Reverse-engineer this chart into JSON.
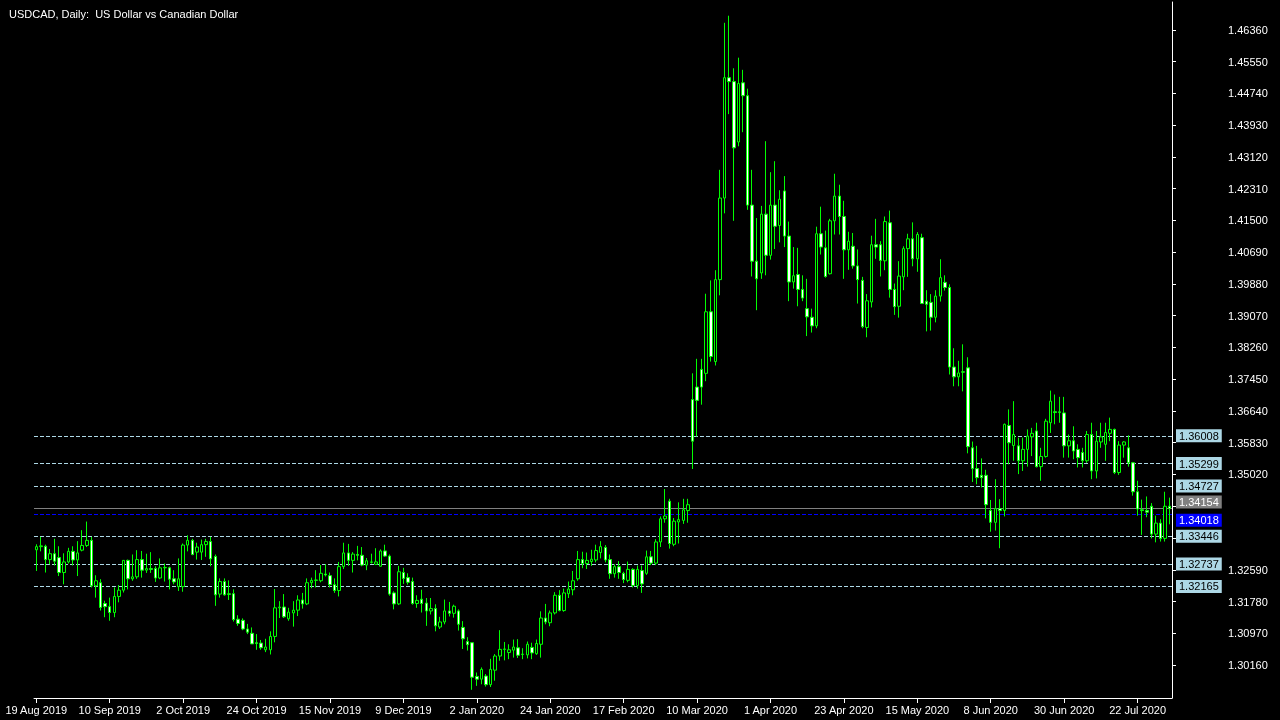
{
  "chart_data": {
    "type": "candlestick",
    "title": "USDCAD, Daily:  US Dollar vs Canadian Dollar",
    "color": "#00ff00",
    "categories": [
      "19 Aug 2019",
      null,
      null,
      null,
      null,
      null,
      null,
      null,
      null,
      null,
      null,
      null,
      null,
      null,
      null,
      null,
      "10 Sep 2019",
      null,
      null,
      null,
      null,
      null,
      null,
      null,
      null,
      null,
      null,
      null,
      null,
      null,
      null,
      null,
      "2 Oct 2019",
      null,
      null,
      null,
      null,
      null,
      null,
      null,
      null,
      null,
      null,
      null,
      null,
      null,
      null,
      null,
      "24 Oct 2019",
      null,
      null,
      null,
      null,
      null,
      null,
      null,
      null,
      null,
      null,
      null,
      null,
      null,
      null,
      null,
      "15 Nov 2019",
      null,
      null,
      null,
      null,
      null,
      null,
      null,
      null,
      null,
      null,
      null,
      null,
      null,
      null,
      null,
      "9 Dec 2019",
      null,
      null,
      null,
      null,
      null,
      null,
      null,
      null,
      null,
      null,
      null,
      null,
      null,
      null,
      null,
      "2 Jan 2020",
      null,
      null,
      null,
      null,
      null,
      null,
      null,
      null,
      null,
      null,
      null,
      null,
      null,
      null,
      null,
      "24 Jan 2020",
      null,
      null,
      null,
      null,
      null,
      null,
      null,
      null,
      null,
      null,
      null,
      null,
      null,
      null,
      null,
      "17 Feb 2020",
      null,
      null,
      null,
      null,
      null,
      null,
      null,
      null,
      null,
      null,
      null,
      null,
      null,
      null,
      null,
      "10 Mar 2020",
      null,
      null,
      null,
      null,
      null,
      null,
      null,
      null,
      null,
      null,
      null,
      null,
      null,
      null,
      null,
      "1 Apr 2020",
      null,
      null,
      null,
      null,
      null,
      null,
      null,
      null,
      null,
      null,
      null,
      null,
      null,
      null,
      null,
      "23 Apr 2020",
      null,
      null,
      null,
      null,
      null,
      null,
      null,
      null,
      null,
      null,
      null,
      null,
      null,
      null,
      null,
      "15 May 2020",
      null,
      null,
      null,
      null,
      null,
      null,
      null,
      null,
      null,
      null,
      null,
      null,
      null,
      null,
      null,
      "8 Jun 2020",
      null,
      null,
      null,
      null,
      null,
      null,
      null,
      null,
      null,
      null,
      null,
      null,
      null,
      null,
      null,
      "30 Jun 2020",
      null,
      null,
      null,
      null,
      null,
      null,
      null,
      null,
      null,
      null,
      null,
      null,
      null,
      null,
      null,
      "22 Jul 2020",
      null,
      null,
      null,
      null,
      null,
      null,
      null
    ],
    "ohlc": [
      [
        1.331,
        1.3324,
        1.3256,
        1.3318
      ],
      [
        1.3318,
        1.3343,
        1.3306,
        1.332
      ],
      [
        1.3319,
        1.3323,
        1.3252,
        1.3285
      ],
      [
        1.3285,
        1.3312,
        1.3273,
        1.33
      ],
      [
        1.33,
        1.3338,
        1.327,
        1.3281
      ],
      [
        1.329,
        1.3319,
        1.3243,
        1.3252
      ],
      [
        1.3252,
        1.3301,
        1.3222,
        1.3279
      ],
      [
        1.3279,
        1.3315,
        1.3275,
        1.3306
      ],
      [
        1.3306,
        1.3319,
        1.327,
        1.3284
      ],
      [
        1.3284,
        1.3332,
        1.3243,
        1.3302
      ],
      [
        1.3309,
        1.336,
        1.3306,
        1.3321
      ],
      [
        1.3321,
        1.3382,
        1.3317,
        1.3334
      ],
      [
        1.3334,
        1.3343,
        1.3214,
        1.3218
      ],
      [
        1.3218,
        1.3245,
        1.3188,
        1.3231
      ],
      [
        1.3226,
        1.3235,
        1.3155,
        1.3163
      ],
      [
        1.3173,
        1.318,
        1.3138,
        1.3165
      ],
      [
        1.3165,
        1.3188,
        1.3129,
        1.315
      ],
      [
        1.315,
        1.3214,
        1.3138,
        1.3191
      ],
      [
        1.3191,
        1.322,
        1.3176,
        1.3207
      ],
      [
        1.3207,
        1.3283,
        1.3201,
        1.3283
      ],
      [
        1.3283,
        1.3285,
        1.3209,
        1.3236
      ],
      [
        1.3236,
        1.3298,
        1.3231,
        1.3241
      ],
      [
        1.3241,
        1.3309,
        1.3236,
        1.3285
      ],
      [
        1.3285,
        1.3307,
        1.3239,
        1.3258
      ],
      [
        1.3258,
        1.33,
        1.3251,
        1.3262
      ],
      [
        1.3262,
        1.3304,
        1.3251,
        1.326
      ],
      [
        1.3262,
        1.3268,
        1.3228,
        1.3238
      ],
      [
        1.3238,
        1.3288,
        1.3235,
        1.3264
      ],
      [
        1.3264,
        1.3275,
        1.3229,
        1.3265
      ],
      [
        1.3264,
        1.3267,
        1.3209,
        1.3235
      ],
      [
        1.3236,
        1.3258,
        1.3222,
        1.3228
      ],
      [
        1.3216,
        1.3288,
        1.3205,
        1.3236
      ],
      [
        1.3216,
        1.3326,
        1.3203,
        1.3322
      ],
      [
        1.3322,
        1.3347,
        1.3306,
        1.3334
      ],
      [
        1.3334,
        1.3338,
        1.3296,
        1.3298
      ],
      [
        1.3304,
        1.3328,
        1.3285,
        1.3317
      ],
      [
        1.3304,
        1.3336,
        1.3284,
        1.3323
      ],
      [
        1.3323,
        1.3338,
        1.3292,
        1.3331
      ],
      [
        1.3331,
        1.3343,
        1.3268,
        1.3287
      ],
      [
        1.3293,
        1.3298,
        1.3167,
        1.3195
      ],
      [
        1.3197,
        1.3237,
        1.3188,
        1.3229
      ],
      [
        1.3229,
        1.3237,
        1.3193,
        1.3195
      ],
      [
        1.3196,
        1.3232,
        1.3182,
        1.3198
      ],
      [
        1.3198,
        1.3209,
        1.3127,
        1.3132
      ],
      [
        1.3133,
        1.3143,
        1.3116,
        1.3122
      ],
      [
        1.313,
        1.3135,
        1.3105,
        1.3108
      ],
      [
        1.3108,
        1.3121,
        1.3095,
        1.31
      ],
      [
        1.3097,
        1.3112,
        1.307,
        1.307
      ],
      [
        1.3073,
        1.3095,
        1.3055,
        1.3071
      ],
      [
        1.3072,
        1.308,
        1.3055,
        1.306
      ],
      [
        1.3055,
        1.3083,
        1.3049,
        1.3062
      ],
      [
        1.3055,
        1.3102,
        1.3043,
        1.3089
      ],
      [
        1.3089,
        1.321,
        1.3074,
        1.3162
      ],
      [
        1.3162,
        1.3179,
        1.3136,
        1.3164
      ],
      [
        1.3164,
        1.3197,
        1.3136,
        1.3139
      ],
      [
        1.3134,
        1.3162,
        1.3129,
        1.3151
      ],
      [
        1.3149,
        1.3179,
        1.3114,
        1.3156
      ],
      [
        1.3156,
        1.3194,
        1.3141,
        1.3182
      ],
      [
        1.3182,
        1.32,
        1.316,
        1.3172
      ],
      [
        1.3172,
        1.3237,
        1.3169,
        1.3226
      ],
      [
        1.3226,
        1.3239,
        1.3212,
        1.3232
      ],
      [
        1.3232,
        1.3258,
        1.3214,
        1.3233
      ],
      [
        1.3231,
        1.3271,
        1.3227,
        1.325
      ],
      [
        1.3248,
        1.3273,
        1.3242,
        1.3246
      ],
      [
        1.3244,
        1.3252,
        1.3214,
        1.3221
      ],
      [
        1.3221,
        1.3237,
        1.32,
        1.3206
      ],
      [
        1.3206,
        1.3279,
        1.3191,
        1.3267
      ],
      [
        1.3267,
        1.3328,
        1.3261,
        1.3302
      ],
      [
        1.3302,
        1.3325,
        1.3269,
        1.3283
      ],
      [
        1.3283,
        1.3304,
        1.3252,
        1.3299
      ],
      [
        1.3298,
        1.332,
        1.3283,
        1.3296
      ],
      [
        1.3296,
        1.3317,
        1.3268,
        1.3271
      ],
      [
        1.3271,
        1.3289,
        1.3258,
        1.3282
      ],
      [
        1.3278,
        1.33,
        1.3275,
        1.3279
      ],
      [
        1.3273,
        1.3314,
        1.3271,
        1.3279
      ],
      [
        1.3268,
        1.3311,
        1.3267,
        1.3307
      ],
      [
        1.3307,
        1.3323,
        1.3292,
        1.3294
      ],
      [
        1.3294,
        1.3298,
        1.3193,
        1.3197
      ],
      [
        1.32,
        1.3204,
        1.3158,
        1.3172
      ],
      [
        1.3172,
        1.3269,
        1.3169,
        1.3254
      ],
      [
        1.3252,
        1.3264,
        1.3223,
        1.3237
      ],
      [
        1.3239,
        1.325,
        1.3221,
        1.3227
      ],
      [
        1.3229,
        1.3239,
        1.317,
        1.3173
      ],
      [
        1.3173,
        1.3194,
        1.3162,
        1.3181
      ],
      [
        1.3184,
        1.3208,
        1.315,
        1.3173
      ],
      [
        1.3174,
        1.3187,
        1.3116,
        1.3154
      ],
      [
        1.3154,
        1.3187,
        1.3145,
        1.316
      ],
      [
        1.316,
        1.3171,
        1.3102,
        1.3116
      ],
      [
        1.3113,
        1.3139,
        1.3108,
        1.3126
      ],
      [
        1.3126,
        1.3183,
        1.312,
        1.3154
      ],
      [
        1.3154,
        1.3177,
        1.314,
        1.3148
      ],
      [
        1.3148,
        1.317,
        1.3137,
        1.3166
      ],
      [
        1.3154,
        1.3158,
        1.3104,
        1.312
      ],
      [
        1.3112,
        1.3128,
        1.3057,
        1.3083
      ],
      [
        1.3076,
        1.3087,
        1.3053,
        1.3068
      ],
      [
        1.3073,
        1.3073,
        1.2953,
        1.2985
      ],
      [
        1.2987,
        1.2997,
        1.2963,
        1.298
      ],
      [
        1.298,
        1.301,
        1.2967,
        1.3005
      ],
      [
        1.2988,
        1.2993,
        1.2961,
        1.2966
      ],
      [
        1.2966,
        1.3032,
        1.296,
        1.3005
      ],
      [
        1.3003,
        1.3044,
        1.2976,
        1.3039
      ],
      [
        1.3039,
        1.3105,
        1.3027,
        1.3056
      ],
      [
        1.3056,
        1.3075,
        1.3028,
        1.3057
      ],
      [
        1.3048,
        1.3069,
        1.3031,
        1.3055
      ],
      [
        1.3054,
        1.3081,
        1.3035,
        1.3062
      ],
      [
        1.306,
        1.3082,
        1.3034,
        1.3041
      ],
      [
        1.3043,
        1.3059,
        1.3031,
        1.3044
      ],
      [
        1.3042,
        1.3076,
        1.3033,
        1.3069
      ],
      [
        1.3061,
        1.3073,
        1.3031,
        1.3047
      ],
      [
        1.3045,
        1.3081,
        1.3042,
        1.3071
      ],
      [
        1.3069,
        1.3153,
        1.3035,
        1.3136
      ],
      [
        1.3136,
        1.3172,
        1.312,
        1.3126
      ],
      [
        1.3124,
        1.3155,
        1.3115,
        1.3149
      ],
      [
        1.3149,
        1.3202,
        1.3145,
        1.3194
      ],
      [
        1.3194,
        1.3207,
        1.3153,
        1.3155
      ],
      [
        1.3155,
        1.3211,
        1.3152,
        1.32
      ],
      [
        1.3198,
        1.3229,
        1.3187,
        1.321
      ],
      [
        1.3208,
        1.3256,
        1.3194,
        1.3231
      ],
      [
        1.3236,
        1.3307,
        1.3231,
        1.3285
      ],
      [
        1.3285,
        1.3305,
        1.3263,
        1.3275
      ],
      [
        1.3275,
        1.3303,
        1.3261,
        1.3283
      ],
      [
        1.328,
        1.331,
        1.3269,
        1.3286
      ],
      [
        1.3284,
        1.3323,
        1.3278,
        1.3308
      ],
      [
        1.3303,
        1.3332,
        1.3288,
        1.3318
      ],
      [
        1.3316,
        1.3322,
        1.3278,
        1.3284
      ],
      [
        1.3285,
        1.3298,
        1.3236,
        1.3249
      ],
      [
        1.3249,
        1.3273,
        1.3239,
        1.3267
      ],
      [
        1.3267,
        1.3281,
        1.3236,
        1.3252
      ],
      [
        1.325,
        1.3254,
        1.3225,
        1.3234
      ],
      [
        1.3232,
        1.328,
        1.3227,
        1.326
      ],
      [
        1.326,
        1.3263,
        1.3214,
        1.3219
      ],
      [
        1.3219,
        1.327,
        1.3211,
        1.326
      ],
      [
        1.3257,
        1.327,
        1.32,
        1.3223
      ],
      [
        1.325,
        1.3308,
        1.3246,
        1.3292
      ],
      [
        1.3292,
        1.3307,
        1.3271,
        1.3276
      ],
      [
        1.3276,
        1.3337,
        1.3271,
        1.333
      ],
      [
        1.333,
        1.3395,
        1.3317,
        1.3389
      ],
      [
        1.3389,
        1.3465,
        1.3379,
        1.3396
      ],
      [
        1.3434,
        1.344,
        1.3313,
        1.3326
      ],
      [
        1.3324,
        1.3391,
        1.3319,
        1.3383
      ],
      [
        1.3381,
        1.3431,
        1.3326,
        1.3387
      ],
      [
        1.3385,
        1.344,
        1.3376,
        1.3412
      ],
      [
        1.341,
        1.344,
        1.3379,
        1.3425
      ],
      [
        1.3693,
        1.376,
        1.3516,
        1.3587
      ],
      [
        1.3725,
        1.3797,
        1.3599,
        1.3691
      ],
      [
        1.377,
        1.3797,
        1.368,
        1.3725
      ],
      [
        1.376,
        1.3963,
        1.374,
        1.3917
      ],
      [
        1.3917,
        1.3997,
        1.379,
        1.3803
      ],
      [
        1.379,
        1.4023,
        1.378,
        1.3999
      ],
      [
        1.3999,
        1.4279,
        1.3959,
        1.4207
      ],
      [
        1.4207,
        1.4654,
        1.4168,
        1.4514
      ],
      [
        1.4514,
        1.4672,
        1.4421,
        1.4504
      ],
      [
        1.4504,
        1.4538,
        1.4149,
        1.4335
      ],
      [
        1.435,
        1.4565,
        1.4339,
        1.4499
      ],
      [
        1.4501,
        1.4534,
        1.4375,
        1.4468
      ],
      [
        1.4468,
        1.4486,
        1.4177,
        1.4189
      ],
      [
        1.4189,
        1.4279,
        1.4007,
        1.4046
      ],
      [
        1.4046,
        1.4156,
        1.3921,
        1.4001
      ],
      [
        1.4016,
        1.4187,
        1.4001,
        1.4166
      ],
      [
        1.4166,
        1.4352,
        1.401,
        1.4061
      ],
      [
        1.4061,
        1.4273,
        1.405,
        1.4189
      ],
      [
        1.4189,
        1.4301,
        1.4077,
        1.4135
      ],
      [
        1.4137,
        1.4227,
        1.4094,
        1.4204
      ],
      [
        1.4225,
        1.4263,
        1.4082,
        1.411
      ],
      [
        1.411,
        1.4147,
        1.3944,
        1.3993
      ],
      [
        1.3993,
        1.4082,
        1.3976,
        1.4009
      ],
      [
        1.4012,
        1.408,
        1.3931,
        1.3974
      ],
      [
        1.3974,
        1.401,
        1.3944,
        1.3952
      ],
      [
        1.3925,
        1.4001,
        1.3855,
        1.3904
      ],
      [
        1.3903,
        1.3925,
        1.3864,
        1.3881
      ],
      [
        1.3881,
        1.4134,
        1.3875,
        1.4116
      ],
      [
        1.4116,
        1.4185,
        1.4063,
        1.4082
      ],
      [
        1.408,
        1.4124,
        1.4004,
        1.4007
      ],
      [
        1.4014,
        1.4154,
        1.4012,
        1.4149
      ],
      [
        1.4149,
        1.4269,
        1.4114,
        1.4212
      ],
      [
        1.4212,
        1.4241,
        1.4114,
        1.416
      ],
      [
        1.416,
        1.42,
        1.4001,
        1.4075
      ],
      [
        1.4075,
        1.4121,
        1.4024,
        1.4097
      ],
      [
        1.4084,
        1.4118,
        1.4027,
        1.4034
      ],
      [
        1.4034,
        1.4076,
        1.3938,
        1.3999
      ],
      [
        1.3997,
        1.4006,
        1.3875,
        1.3879
      ],
      [
        1.3877,
        1.3962,
        1.3852,
        1.3945
      ],
      [
        1.3942,
        1.4111,
        1.3928,
        1.4088
      ],
      [
        1.4088,
        1.4154,
        1.4052,
        1.4082
      ],
      [
        1.4088,
        1.4097,
        1.4007,
        1.4048
      ],
      [
        1.4047,
        1.416,
        1.4023,
        1.4147
      ],
      [
        1.4144,
        1.4175,
        1.3953,
        1.3974
      ],
      [
        1.3974,
        1.3989,
        1.3909,
        1.393
      ],
      [
        1.3931,
        1.4046,
        1.3902,
        1.4008
      ],
      [
        1.4006,
        1.4084,
        1.3972,
        1.4078
      ],
      [
        1.4078,
        1.4116,
        1.4006,
        1.4103
      ],
      [
        1.4103,
        1.4145,
        1.4033,
        1.4052
      ],
      [
        1.4052,
        1.412,
        1.4019,
        1.4114
      ],
      [
        1.4106,
        1.4116,
        1.3937,
        1.3938
      ],
      [
        1.3944,
        1.3972,
        1.3867,
        1.3936
      ],
      [
        1.3941,
        1.3962,
        1.3869,
        1.3903
      ],
      [
        1.3903,
        1.3972,
        1.389,
        1.3957
      ],
      [
        1.3957,
        1.4051,
        1.3943,
        1.4004
      ],
      [
        1.3992,
        1.401,
        1.3971,
        1.3979
      ],
      [
        1.3979,
        1.3987,
        1.3757,
        1.3776
      ],
      [
        1.3776,
        1.3824,
        1.3727,
        1.3751
      ],
      [
        1.3751,
        1.3792,
        1.3727,
        1.3761
      ],
      [
        1.3764,
        1.3834,
        1.3714,
        1.3763
      ],
      [
        1.3774,
        1.3801,
        1.3556,
        1.3573
      ],
      [
        1.357,
        1.3586,
        1.3483,
        1.3517
      ],
      [
        1.3517,
        1.3575,
        1.3477,
        1.3494
      ],
      [
        1.35,
        1.3543,
        1.3469,
        1.3494
      ],
      [
        1.35,
        1.3514,
        1.339,
        1.3425
      ],
      [
        1.341,
        1.3437,
        1.3356,
        1.338
      ],
      [
        1.338,
        1.349,
        1.3359,
        1.3415
      ],
      [
        1.3415,
        1.3439,
        1.3314,
        1.341
      ],
      [
        1.341,
        1.3632,
        1.3395,
        1.363
      ],
      [
        1.3627,
        1.3668,
        1.3528,
        1.3583
      ],
      [
        1.3576,
        1.3689,
        1.3537,
        1.3604
      ],
      [
        1.3575,
        1.3596,
        1.3503,
        1.3537
      ],
      [
        1.3537,
        1.3596,
        1.3511,
        1.3566
      ],
      [
        1.3566,
        1.3617,
        1.3522,
        1.36
      ],
      [
        1.3598,
        1.3621,
        1.3549,
        1.3607
      ],
      [
        1.3613,
        1.3634,
        1.352,
        1.3522
      ],
      [
        1.3522,
        1.357,
        1.3486,
        1.3548
      ],
      [
        1.3548,
        1.3644,
        1.3545,
        1.3638
      ],
      [
        1.3634,
        1.3716,
        1.3608,
        1.3689
      ],
      [
        1.3662,
        1.3706,
        1.363,
        1.366
      ],
      [
        1.366,
        1.37,
        1.3634,
        1.3662
      ],
      [
        1.3659,
        1.37,
        1.3545,
        1.3575
      ],
      [
        1.3575,
        1.3604,
        1.3545,
        1.3588
      ],
      [
        1.3588,
        1.3625,
        1.3541,
        1.3562
      ],
      [
        1.3566,
        1.3579,
        1.352,
        1.3545
      ],
      [
        1.3558,
        1.357,
        1.352,
        1.3537
      ],
      [
        1.3537,
        1.3613,
        1.3532,
        1.3604
      ],
      [
        1.3604,
        1.3634,
        1.349,
        1.3511
      ],
      [
        1.3511,
        1.3613,
        1.3492,
        1.3587
      ],
      [
        1.3585,
        1.3634,
        1.357,
        1.3598
      ],
      [
        1.3579,
        1.3634,
        1.3537,
        1.3609
      ],
      [
        1.3607,
        1.3647,
        1.3587,
        1.3617
      ],
      [
        1.3617,
        1.3619,
        1.3503,
        1.3507
      ],
      [
        1.3507,
        1.3587,
        1.3501,
        1.3577
      ],
      [
        1.3577,
        1.3587,
        1.3545,
        1.3585
      ],
      [
        1.357,
        1.3602,
        1.3522,
        1.3532
      ],
      [
        1.3532,
        1.3534,
        1.3448,
        1.3458
      ],
      [
        1.3458,
        1.3486,
        1.3397,
        1.3414
      ],
      [
        1.3412,
        1.3438,
        1.3348,
        1.341
      ],
      [
        1.341,
        1.3446,
        1.3393,
        1.3406
      ],
      [
        1.3421,
        1.3429,
        1.3339,
        1.335
      ],
      [
        1.335,
        1.3397,
        1.3329,
        1.3378
      ],
      [
        1.3378,
        1.3388,
        1.3331,
        1.3339
      ],
      [
        1.3339,
        1.3458,
        1.3331,
        1.3421
      ],
      [
        1.3421,
        1.3443,
        1.3375,
        1.3415
      ]
    ],
    "ylim": [
      1.2932,
      1.4707
    ],
    "yticks": [
      {
        "value": 1.3016,
        "label": "1.30160"
      },
      {
        "value": 1.3097,
        "label": "1.30970"
      },
      {
        "value": 1.3178,
        "label": "1.31780"
      },
      {
        "value": 1.3259,
        "label": "1.32590"
      },
      {
        "value": 1.334,
        "label": null
      },
      {
        "value": 1.3421,
        "label": null
      },
      {
        "value": 1.3502,
        "label": "1.35020"
      },
      {
        "value": 1.3583,
        "label": "1.35830"
      },
      {
        "value": 1.3664,
        "label": "1.36640"
      },
      {
        "value": 1.3745,
        "label": "1.37450"
      },
      {
        "value": 1.3826,
        "label": "1.38260"
      },
      {
        "value": 1.3907,
        "label": "1.39070"
      },
      {
        "value": 1.3988,
        "label": "1.39880"
      },
      {
        "value": 1.4069,
        "label": "1.40690"
      },
      {
        "value": 1.415,
        "label": "1.41500"
      },
      {
        "value": 1.4231,
        "label": "1.42310"
      },
      {
        "value": 1.4312,
        "label": "1.43120"
      },
      {
        "value": 1.4393,
        "label": "1.43930"
      },
      {
        "value": 1.4474,
        "label": "1.44740"
      },
      {
        "value": 1.4555,
        "label": "1.45550"
      },
      {
        "value": 1.4636,
        "label": "1.46360"
      }
    ],
    "ref_lines": [
      {
        "axis": "y",
        "value": 1.36008,
        "label": "1.36008",
        "color": "#add8e6",
        "line_style": "dashed"
      },
      {
        "axis": "y",
        "value": 1.35299,
        "label": "1.35299",
        "color": "#add8e6",
        "line_style": "dashed"
      },
      {
        "axis": "y",
        "value": 1.34727,
        "label": "1.34727",
        "color": "#add8e6",
        "line_style": "dashed"
      },
      {
        "axis": "y",
        "value": 1.34154,
        "label": "1.34154",
        "color": "#808080",
        "line_style": "solid"
      },
      {
        "axis": "y",
        "value": 1.34018,
        "label": "1.34018",
        "color": "#0000ff",
        "line_style": "dashed"
      },
      {
        "axis": "y",
        "value": 1.33446,
        "label": "1.33446",
        "color": "#add8e6",
        "line_style": "dashed"
      },
      {
        "axis": "y",
        "value": 1.32737,
        "label": "1.32737",
        "color": "#add8e6",
        "line_style": "dashed"
      },
      {
        "axis": "y",
        "value": 1.32165,
        "label": "1.32165",
        "color": "#add8e6",
        "line_style": "dashed"
      }
    ],
    "grid": false
  }
}
